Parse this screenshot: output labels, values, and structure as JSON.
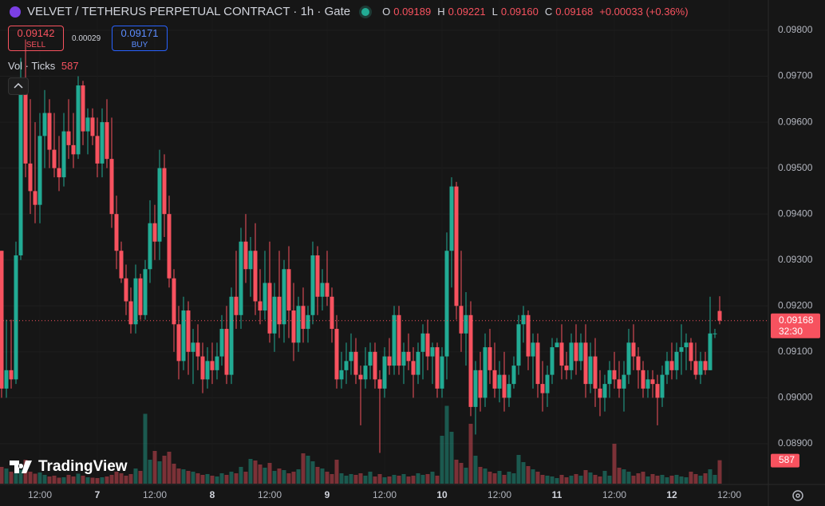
{
  "chart_data": {
    "type": "candlestick",
    "title": "VELVET / TETHERUS PERPETUAL CONTRACT · 1h · Gate",
    "ohlc_labels": [
      "O",
      "H",
      "L",
      "C"
    ],
    "legend_values": [
      "0.09189",
      "0.09221",
      "0.09160",
      "0.09168"
    ],
    "change": "+0.00033 (+0.36%)",
    "sell": {
      "price": "0.09142",
      "label": "SELL"
    },
    "spread": "0.00029",
    "buy": {
      "price": "0.09171",
      "label": "BUY"
    },
    "volume_title": "Vol · Ticks",
    "volume_last": "587",
    "countdown": "32:30",
    "brand": "TradingView",
    "up_color": "#22ab94",
    "down_color": "#f7525f",
    "grid": true,
    "ylim": [
      0.08813,
      0.09866
    ],
    "yticks": [
      {
        "value": 0.098,
        "label": "0.09800"
      },
      {
        "value": 0.097,
        "label": "0.09700"
      },
      {
        "value": 0.096,
        "label": "0.09600"
      },
      {
        "value": 0.095,
        "label": "0.09500"
      },
      {
        "value": 0.094,
        "label": "0.09400"
      },
      {
        "value": 0.093,
        "label": "0.09300"
      },
      {
        "value": 0.092,
        "label": "0.09200"
      },
      {
        "value": 0.091,
        "label": "0.09100"
      },
      {
        "value": 0.09,
        "label": "0.09000"
      },
      {
        "value": 0.089,
        "label": "0.08900"
      }
    ],
    "xlim": [
      -0.333,
      160
    ],
    "xticks": [
      {
        "value": 8,
        "label": "12:00"
      },
      {
        "value": 20,
        "label": "7"
      },
      {
        "value": 32,
        "label": "12:00"
      },
      {
        "value": 44,
        "label": "8"
      },
      {
        "value": 56,
        "label": "12:00"
      },
      {
        "value": 68,
        "label": "9"
      },
      {
        "value": 80,
        "label": "12:00"
      },
      {
        "value": 92,
        "label": "10"
      },
      {
        "value": 104,
        "label": "12:00"
      },
      {
        "value": 116,
        "label": "11"
      },
      {
        "value": 128,
        "label": "12:00"
      },
      {
        "value": 140,
        "label": "12"
      },
      {
        "value": 152,
        "label": "12:00"
      }
    ],
    "volume_ylim": [
      0,
      2000
    ],
    "ohlc": [
      [
        0.0932,
        0.0932,
        0.09,
        0.0902
      ],
      [
        0.0902,
        0.0917,
        0.09,
        0.0906
      ],
      [
        0.0906,
        0.0917,
        0.0902,
        0.0904
      ],
      [
        0.0904,
        0.0934,
        0.0903,
        0.0931
      ],
      [
        0.0931,
        0.0974,
        0.093,
        0.0968
      ],
      [
        0.0968,
        0.0978,
        0.0948,
        0.0951
      ],
      [
        0.0951,
        0.0965,
        0.094,
        0.0945
      ],
      [
        0.0945,
        0.096,
        0.0938,
        0.0942
      ],
      [
        0.0942,
        0.0962,
        0.0938,
        0.0957
      ],
      [
        0.0957,
        0.0967,
        0.095,
        0.0962
      ],
      [
        0.0962,
        0.0965,
        0.095,
        0.0954
      ],
      [
        0.0954,
        0.0962,
        0.0948,
        0.095
      ],
      [
        0.095,
        0.0957,
        0.0945,
        0.0948
      ],
      [
        0.0948,
        0.0962,
        0.0946,
        0.0958
      ],
      [
        0.0958,
        0.0965,
        0.0952,
        0.0955
      ],
      [
        0.0955,
        0.0962,
        0.095,
        0.0953
      ],
      [
        0.0953,
        0.097,
        0.0952,
        0.0968
      ],
      [
        0.0968,
        0.0969,
        0.0955,
        0.0958
      ],
      [
        0.0958,
        0.0963,
        0.0953,
        0.0961
      ],
      [
        0.0961,
        0.0963,
        0.0955,
        0.0957
      ],
      [
        0.0957,
        0.0961,
        0.0948,
        0.0951
      ],
      [
        0.0951,
        0.0963,
        0.0948,
        0.096
      ],
      [
        0.096,
        0.0965,
        0.095,
        0.0952
      ],
      [
        0.0952,
        0.0961,
        0.0937,
        0.094
      ],
      [
        0.094,
        0.0944,
        0.0928,
        0.0932
      ],
      [
        0.0932,
        0.0934,
        0.0925,
        0.0926
      ],
      [
        0.0926,
        0.0929,
        0.0918,
        0.0921
      ],
      [
        0.0921,
        0.0924,
        0.0914,
        0.0916
      ],
      [
        0.0916,
        0.0929,
        0.0914,
        0.0926
      ],
      [
        0.0926,
        0.0927,
        0.0917,
        0.0918
      ],
      [
        0.0918,
        0.093,
        0.0917,
        0.0928
      ],
      [
        0.0928,
        0.0943,
        0.0925,
        0.0938
      ],
      [
        0.0938,
        0.0942,
        0.093,
        0.0934
      ],
      [
        0.0934,
        0.0954,
        0.093,
        0.095
      ],
      [
        0.095,
        0.0953,
        0.0935,
        0.094
      ],
      [
        0.094,
        0.0944,
        0.0924,
        0.0926
      ],
      [
        0.0926,
        0.0928,
        0.091,
        0.0916
      ],
      [
        0.0916,
        0.092,
        0.0904,
        0.0908
      ],
      [
        0.0908,
        0.0922,
        0.0906,
        0.0919
      ],
      [
        0.0919,
        0.0921,
        0.0905,
        0.091
      ],
      [
        0.091,
        0.0915,
        0.0903,
        0.0912
      ],
      [
        0.0912,
        0.0916,
        0.0906,
        0.0909
      ],
      [
        0.0909,
        0.0912,
        0.0901,
        0.0904
      ],
      [
        0.0904,
        0.0911,
        0.0902,
        0.0908
      ],
      [
        0.0908,
        0.0912,
        0.0903,
        0.0906
      ],
      [
        0.0906,
        0.0912,
        0.0904,
        0.0909
      ],
      [
        0.0909,
        0.0918,
        0.0907,
        0.0915
      ],
      [
        0.0915,
        0.092,
        0.0903,
        0.0905
      ],
      [
        0.0905,
        0.0924,
        0.0903,
        0.0922
      ],
      [
        0.0922,
        0.0932,
        0.0915,
        0.0918
      ],
      [
        0.0918,
        0.0937,
        0.0915,
        0.0934
      ],
      [
        0.0934,
        0.094,
        0.0925,
        0.0928
      ],
      [
        0.0928,
        0.0935,
        0.0922,
        0.0932
      ],
      [
        0.0932,
        0.0938,
        0.0918,
        0.0921
      ],
      [
        0.0921,
        0.0928,
        0.0916,
        0.0919
      ],
      [
        0.0919,
        0.0932,
        0.0917,
        0.0925
      ],
      [
        0.0925,
        0.0934,
        0.0912,
        0.0914
      ],
      [
        0.0914,
        0.0925,
        0.091,
        0.0922
      ],
      [
        0.0922,
        0.0932,
        0.0913,
        0.0916
      ],
      [
        0.0916,
        0.093,
        0.0912,
        0.0928
      ],
      [
        0.0928,
        0.0933,
        0.0913,
        0.0919
      ],
      [
        0.0919,
        0.0925,
        0.0908,
        0.0912
      ],
      [
        0.0912,
        0.0922,
        0.091,
        0.092
      ],
      [
        0.092,
        0.0924,
        0.0912,
        0.0915
      ],
      [
        0.0915,
        0.092,
        0.0912,
        0.0918
      ],
      [
        0.0918,
        0.0934,
        0.0916,
        0.0931
      ],
      [
        0.0931,
        0.0933,
        0.0918,
        0.0922
      ],
      [
        0.0922,
        0.0928,
        0.0919,
        0.0925
      ],
      [
        0.0925,
        0.0932,
        0.092,
        0.0922
      ],
      [
        0.0922,
        0.0924,
        0.0912,
        0.0915
      ],
      [
        0.0915,
        0.0918,
        0.0902,
        0.0904
      ],
      [
        0.0904,
        0.091,
        0.0902,
        0.0906
      ],
      [
        0.0906,
        0.0912,
        0.0903,
        0.0908
      ],
      [
        0.0908,
        0.0914,
        0.0905,
        0.091
      ],
      [
        0.091,
        0.0913,
        0.0903,
        0.0905
      ],
      [
        0.0905,
        0.0907,
        0.0894,
        0.0904
      ],
      [
        0.0904,
        0.0911,
        0.0902,
        0.0907
      ],
      [
        0.0907,
        0.0912,
        0.0904,
        0.091
      ],
      [
        0.091,
        0.0912,
        0.0902,
        0.0904
      ],
      [
        0.0904,
        0.0906,
        0.0888,
        0.0902
      ],
      [
        0.0902,
        0.0911,
        0.09,
        0.0909
      ],
      [
        0.0909,
        0.0913,
        0.0905,
        0.0907
      ],
      [
        0.0907,
        0.092,
        0.0905,
        0.0918
      ],
      [
        0.0918,
        0.092,
        0.0905,
        0.0907
      ],
      [
        0.0907,
        0.0912,
        0.0903,
        0.091
      ],
      [
        0.091,
        0.0914,
        0.0906,
        0.0908
      ],
      [
        0.0908,
        0.0911,
        0.09,
        0.0905
      ],
      [
        0.0905,
        0.0912,
        0.0903,
        0.091
      ],
      [
        0.091,
        0.0916,
        0.0904,
        0.0914
      ],
      [
        0.0914,
        0.0917,
        0.0906,
        0.0909
      ],
      [
        0.0909,
        0.0912,
        0.0903,
        0.0911
      ],
      [
        0.0911,
        0.0912,
        0.09,
        0.0902
      ],
      [
        0.0902,
        0.0911,
        0.09,
        0.0909
      ],
      [
        0.0909,
        0.0936,
        0.0904,
        0.0932
      ],
      [
        0.0932,
        0.0948,
        0.0924,
        0.0946
      ],
      [
        0.0946,
        0.0947,
        0.0917,
        0.092
      ],
      [
        0.092,
        0.0932,
        0.091,
        0.0914
      ],
      [
        0.0914,
        0.0923,
        0.0907,
        0.0918
      ],
      [
        0.0918,
        0.0921,
        0.0896,
        0.0898
      ],
      [
        0.0898,
        0.0908,
        0.0892,
        0.0906
      ],
      [
        0.0906,
        0.091,
        0.0897,
        0.09
      ],
      [
        0.09,
        0.0914,
        0.0898,
        0.0911
      ],
      [
        0.0911,
        0.0915,
        0.0903,
        0.0906
      ],
      [
        0.0906,
        0.0912,
        0.09,
        0.0902
      ],
      [
        0.0902,
        0.0908,
        0.0899,
        0.0905
      ],
      [
        0.0905,
        0.091,
        0.0897,
        0.09
      ],
      [
        0.09,
        0.0905,
        0.0898,
        0.0903
      ],
      [
        0.0903,
        0.0909,
        0.0902,
        0.0907
      ],
      [
        0.0907,
        0.0918,
        0.0905,
        0.0916
      ],
      [
        0.0916,
        0.092,
        0.0912,
        0.0918
      ],
      [
        0.0918,
        0.0919,
        0.0906,
        0.0909
      ],
      [
        0.0909,
        0.0914,
        0.0902,
        0.0912
      ],
      [
        0.0912,
        0.0914,
        0.09,
        0.0903
      ],
      [
        0.0903,
        0.0908,
        0.0897,
        0.0901
      ],
      [
        0.0901,
        0.0907,
        0.0898,
        0.0905
      ],
      [
        0.0905,
        0.0913,
        0.0903,
        0.0911
      ],
      [
        0.0911,
        0.0913,
        0.0911,
        0.0912
      ],
      [
        0.0912,
        0.0916,
        0.0904,
        0.0907
      ],
      [
        0.0907,
        0.091,
        0.0904,
        0.0906
      ],
      [
        0.0906,
        0.0914,
        0.0904,
        0.0912
      ],
      [
        0.0912,
        0.0916,
        0.0905,
        0.0908
      ],
      [
        0.0908,
        0.0914,
        0.0906,
        0.0912
      ],
      [
        0.0912,
        0.0916,
        0.09,
        0.0903
      ],
      [
        0.0903,
        0.0912,
        0.0901,
        0.0909
      ],
      [
        0.0909,
        0.0913,
        0.0898,
        0.0902
      ],
      [
        0.0902,
        0.0906,
        0.0896,
        0.09
      ],
      [
        0.09,
        0.0905,
        0.0897,
        0.0903
      ],
      [
        0.0903,
        0.0908,
        0.09,
        0.0906
      ],
      [
        0.0906,
        0.091,
        0.0902,
        0.0904
      ],
      [
        0.0904,
        0.0908,
        0.09,
        0.0902
      ],
      [
        0.0902,
        0.0908,
        0.0897,
        0.0905
      ],
      [
        0.0905,
        0.0915,
        0.0903,
        0.0912
      ],
      [
        0.0912,
        0.0916,
        0.0906,
        0.0909
      ],
      [
        0.0909,
        0.0911,
        0.0902,
        0.0906
      ],
      [
        0.0906,
        0.0908,
        0.09,
        0.0902
      ],
      [
        0.0902,
        0.0906,
        0.09,
        0.0904
      ],
      [
        0.0904,
        0.0906,
        0.09,
        0.0903
      ],
      [
        0.0903,
        0.0905,
        0.0894,
        0.09
      ],
      [
        0.09,
        0.0907,
        0.0898,
        0.0905
      ],
      [
        0.0905,
        0.091,
        0.0903,
        0.0908
      ],
      [
        0.0908,
        0.0912,
        0.0904,
        0.0906
      ],
      [
        0.0906,
        0.0912,
        0.0904,
        0.091
      ],
      [
        0.091,
        0.0916,
        0.0905,
        0.0911
      ],
      [
        0.0911,
        0.0914,
        0.0906,
        0.0912
      ],
      [
        0.0912,
        0.0913,
        0.0906,
        0.0908
      ],
      [
        0.0908,
        0.0912,
        0.0904,
        0.0905
      ],
      [
        0.0905,
        0.091,
        0.0903,
        0.0908
      ],
      [
        0.0908,
        0.091,
        0.0905,
        0.0906
      ],
      [
        0.0906,
        0.0922,
        0.0906,
        0.0914
      ],
      [
        0.0914,
        0.0915,
        0.0913,
        0.0914
      ],
      [
        0.09189,
        0.09221,
        0.0916,
        0.09168
      ]
    ],
    "volume": [
      420,
      380,
      300,
      260,
      350,
      600,
      300,
      250,
      280,
      220,
      180,
      200,
      150,
      160,
      220,
      180,
      250,
      200,
      160,
      150,
      140,
      160,
      180,
      220,
      300,
      260,
      200,
      240,
      380,
      320,
      1750,
      600,
      820,
      560,
      700,
      800,
      500,
      380,
      360,
      320,
      300,
      260,
      220,
      240,
      200,
      180,
      260,
      220,
      300,
      260,
      420,
      300,
      620,
      580,
      480,
      400,
      520,
      320,
      380,
      340,
      260,
      300,
      360,
      760,
      700,
      560,
      420,
      380,
      300,
      240,
      600,
      260,
      200,
      240,
      220,
      260,
      200,
      300,
      180,
      240,
      160,
      180,
      220,
      200,
      240,
      180,
      200,
      260,
      220,
      240,
      300,
      200,
      1200,
      1950,
      1300,
      600,
      520,
      400,
      1500,
      700,
      420,
      380,
      300,
      260,
      320,
      220,
      300,
      260,
      720,
      540,
      440,
      360,
      300,
      220,
      200,
      180,
      140,
      220,
      160,
      200,
      240,
      200,
      340,
      280,
      220,
      180,
      320,
      200,
      1000,
      400,
      360,
      300,
      200,
      260,
      300,
      180,
      240,
      200,
      220,
      160,
      200,
      220,
      180,
      160,
      300,
      240,
      200,
      260,
      360,
      220,
      587
    ]
  }
}
